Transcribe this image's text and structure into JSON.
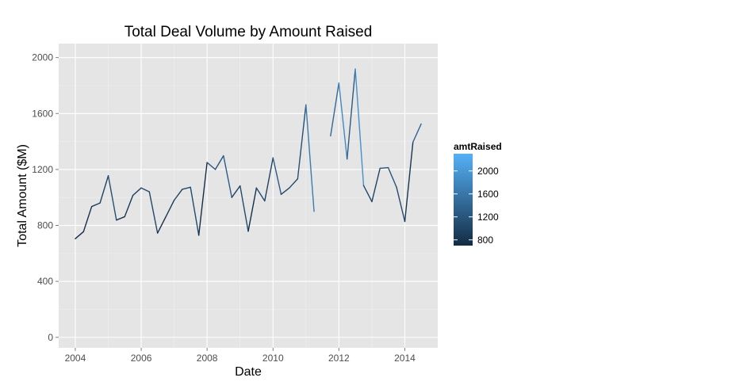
{
  "chart_data": {
    "type": "line",
    "title": "Total Deal Volume by Amount Raised",
    "xlabel": "Date",
    "ylabel": "Total Amount ($M)",
    "xlim": [
      "2003-07-01",
      "2015-01-01"
    ],
    "ylim": [
      -75,
      2100
    ],
    "x_ticks": [
      {
        "date": "2004-01-01",
        "label": "2004"
      },
      {
        "date": "2006-01-01",
        "label": "2006"
      },
      {
        "date": "2008-01-01",
        "label": "2008"
      },
      {
        "date": "2010-01-01",
        "label": "2010"
      },
      {
        "date": "2012-01-01",
        "label": "2012"
      },
      {
        "date": "2014-01-01",
        "label": "2014"
      }
    ],
    "y_ticks": [
      0,
      400,
      800,
      1200,
      1600,
      2000
    ],
    "grid": true,
    "background": "#e5e5e5",
    "color_scale": {
      "low": "#132b43",
      "high": "#56b1f7",
      "min": 700,
      "max": 2300
    },
    "series": [
      {
        "values": [
          {
            "x": "2004-01-01",
            "y": 705
          },
          {
            "x": "2004-04-01",
            "y": 755
          },
          {
            "x": "2004-07-01",
            "y": 935
          },
          {
            "x": "2004-10-01",
            "y": 960
          },
          {
            "x": "2005-01-01",
            "y": 1155
          },
          {
            "x": "2005-04-01",
            "y": 838
          },
          {
            "x": "2005-07-01",
            "y": 862
          },
          {
            "x": "2005-10-01",
            "y": 1015
          },
          {
            "x": "2006-01-01",
            "y": 1068
          },
          {
            "x": "2006-04-01",
            "y": 1040
          },
          {
            "x": "2006-07-01",
            "y": 745
          },
          {
            "x": "2006-10-01",
            "y": 862
          },
          {
            "x": "2007-01-01",
            "y": 980
          },
          {
            "x": "2007-04-01",
            "y": 1058
          },
          {
            "x": "2007-07-01",
            "y": 1073
          },
          {
            "x": "2007-10-01",
            "y": 730
          },
          {
            "x": "2008-01-01",
            "y": 1250
          },
          {
            "x": "2008-04-01",
            "y": 1200
          },
          {
            "x": "2008-07-01",
            "y": 1298
          },
          {
            "x": "2008-10-01",
            "y": 1000
          },
          {
            "x": "2009-01-01",
            "y": 1083
          },
          {
            "x": "2009-04-01",
            "y": 758
          },
          {
            "x": "2009-07-01",
            "y": 1068
          },
          {
            "x": "2009-10-01",
            "y": 975
          },
          {
            "x": "2010-01-01",
            "y": 1283
          },
          {
            "x": "2010-04-01",
            "y": 1022
          },
          {
            "x": "2010-07-01",
            "y": 1068
          },
          {
            "x": "2010-10-01",
            "y": 1133
          },
          {
            "x": "2011-01-01",
            "y": 1663
          },
          {
            "x": "2011-04-01",
            "y": 900
          },
          {
            "x": "2011-07-01",
            "y": null
          },
          {
            "x": "2011-10-01",
            "y": 1440
          },
          {
            "x": "2012-01-01",
            "y": 1818
          },
          {
            "x": "2012-04-01",
            "y": 1275
          },
          {
            "x": "2012-07-01",
            "y": 1918
          },
          {
            "x": "2012-10-01",
            "y": 1085
          },
          {
            "x": "2013-01-01",
            "y": 970
          },
          {
            "x": "2013-04-01",
            "y": 1208
          },
          {
            "x": "2013-07-01",
            "y": 1213
          },
          {
            "x": "2013-10-01",
            "y": 1073
          },
          {
            "x": "2014-01-01",
            "y": 828
          },
          {
            "x": "2014-04-01",
            "y": 1395
          },
          {
            "x": "2014-07-01",
            "y": 1525
          }
        ]
      }
    ],
    "legend": {
      "title": "amtRaised",
      "placement": "right",
      "ticks": [
        800,
        1200,
        1600,
        2000
      ]
    }
  }
}
